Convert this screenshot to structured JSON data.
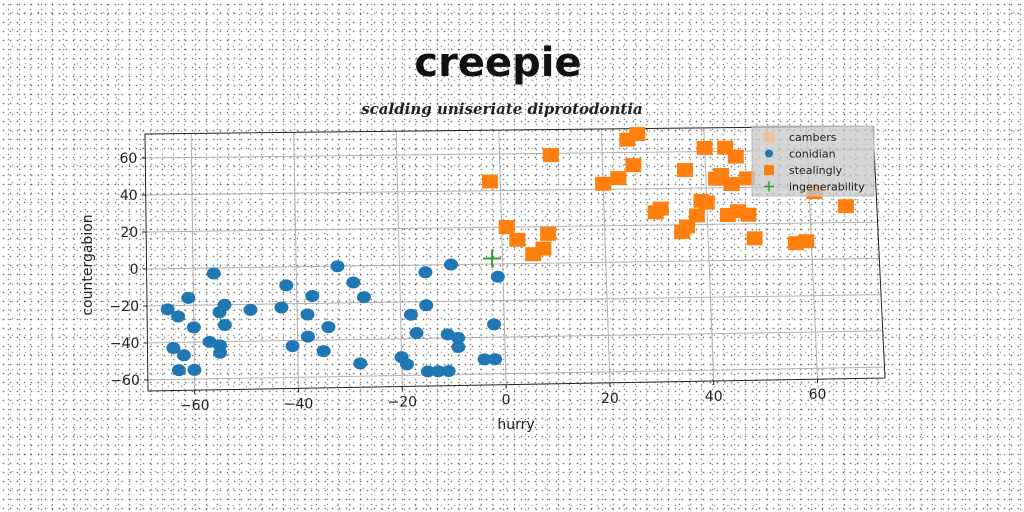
{
  "chart_data": {
    "type": "scatter",
    "title": "creepie",
    "subtitle": "scalding uniseriate diprotodontia",
    "xlabel": "hurry",
    "ylabel": "countergabion",
    "xlim": [
      -69,
      73
    ],
    "ylim": [
      -66,
      73
    ],
    "xticks": [
      -60,
      -40,
      -20,
      0,
      20,
      40,
      60
    ],
    "yticks": [
      60,
      40,
      20,
      0,
      -20,
      -40,
      -60
    ],
    "grid": true,
    "legend_position": "top-right",
    "series": [
      {
        "name": "cambers",
        "marker": "none",
        "color": "#ffb37a",
        "points": []
      },
      {
        "name": "conidian",
        "marker": "circle",
        "color": "#1f77b4",
        "points": [
          [
            -61,
            -16
          ],
          [
            -56,
            -3
          ],
          [
            -63,
            -26
          ],
          [
            -65,
            -22
          ],
          [
            -60,
            -32
          ],
          [
            -55,
            -24
          ],
          [
            -54,
            -20
          ],
          [
            -54,
            -31
          ],
          [
            -55,
            -46
          ],
          [
            -57,
            -40
          ],
          [
            -55,
            -42
          ],
          [
            -64,
            -43
          ],
          [
            -62,
            -47
          ],
          [
            -63,
            -55
          ],
          [
            -60,
            -55
          ],
          [
            -49,
            -23
          ],
          [
            -43,
            -22
          ],
          [
            -42,
            -10
          ],
          [
            -41,
            -43
          ],
          [
            -38,
            -38
          ],
          [
            -38,
            -26
          ],
          [
            -37,
            -16
          ],
          [
            -35,
            -46
          ],
          [
            -34,
            -33
          ],
          [
            -32,
            0
          ],
          [
            -29,
            -9
          ],
          [
            -27,
            -17
          ],
          [
            -28,
            -53
          ],
          [
            -20,
            -50
          ],
          [
            -19,
            -54
          ],
          [
            -18,
            -27
          ],
          [
            -17,
            -37
          ],
          [
            -15,
            -4
          ],
          [
            -15,
            -22
          ],
          [
            -15,
            -58
          ],
          [
            -13,
            -58
          ],
          [
            -11,
            -38
          ],
          [
            -10,
            0
          ],
          [
            -11,
            -58
          ],
          [
            -9,
            -40
          ],
          [
            -9,
            -45
          ],
          [
            -4,
            -52
          ],
          [
            -2,
            -52
          ],
          [
            -2,
            -33
          ],
          [
            -1,
            -7
          ]
        ]
      },
      {
        "name": "stealingly",
        "marker": "square",
        "color": "#ff7f0e",
        "points": [
          [
            -2,
            45
          ],
          [
            1,
            20
          ],
          [
            3,
            13
          ],
          [
            6,
            5
          ],
          [
            8,
            8
          ],
          [
            9,
            16
          ],
          [
            10,
            59
          ],
          [
            20,
            43
          ],
          [
            23,
            46
          ],
          [
            26,
            53
          ],
          [
            25,
            67
          ],
          [
            27,
            70
          ],
          [
            30,
            27
          ],
          [
            31,
            29
          ],
          [
            35,
            16
          ],
          [
            36,
            19
          ],
          [
            36,
            50
          ],
          [
            38,
            25
          ],
          [
            39,
            33
          ],
          [
            40,
            32
          ],
          [
            40,
            62
          ],
          [
            42,
            45
          ],
          [
            43,
            47
          ],
          [
            44,
            62
          ],
          [
            45,
            42
          ],
          [
            44,
            25
          ],
          [
            46,
            27
          ],
          [
            46,
            57
          ],
          [
            48,
            25
          ],
          [
            48,
            45
          ],
          [
            49,
            12
          ],
          [
            57,
            9
          ],
          [
            59,
            10
          ],
          [
            61,
            37
          ],
          [
            67,
            29
          ]
        ]
      },
      {
        "name": "ingenerability",
        "marker": "plus",
        "color": "#2ca02c",
        "points": [
          [
            -2,
            3
          ]
        ]
      }
    ]
  }
}
